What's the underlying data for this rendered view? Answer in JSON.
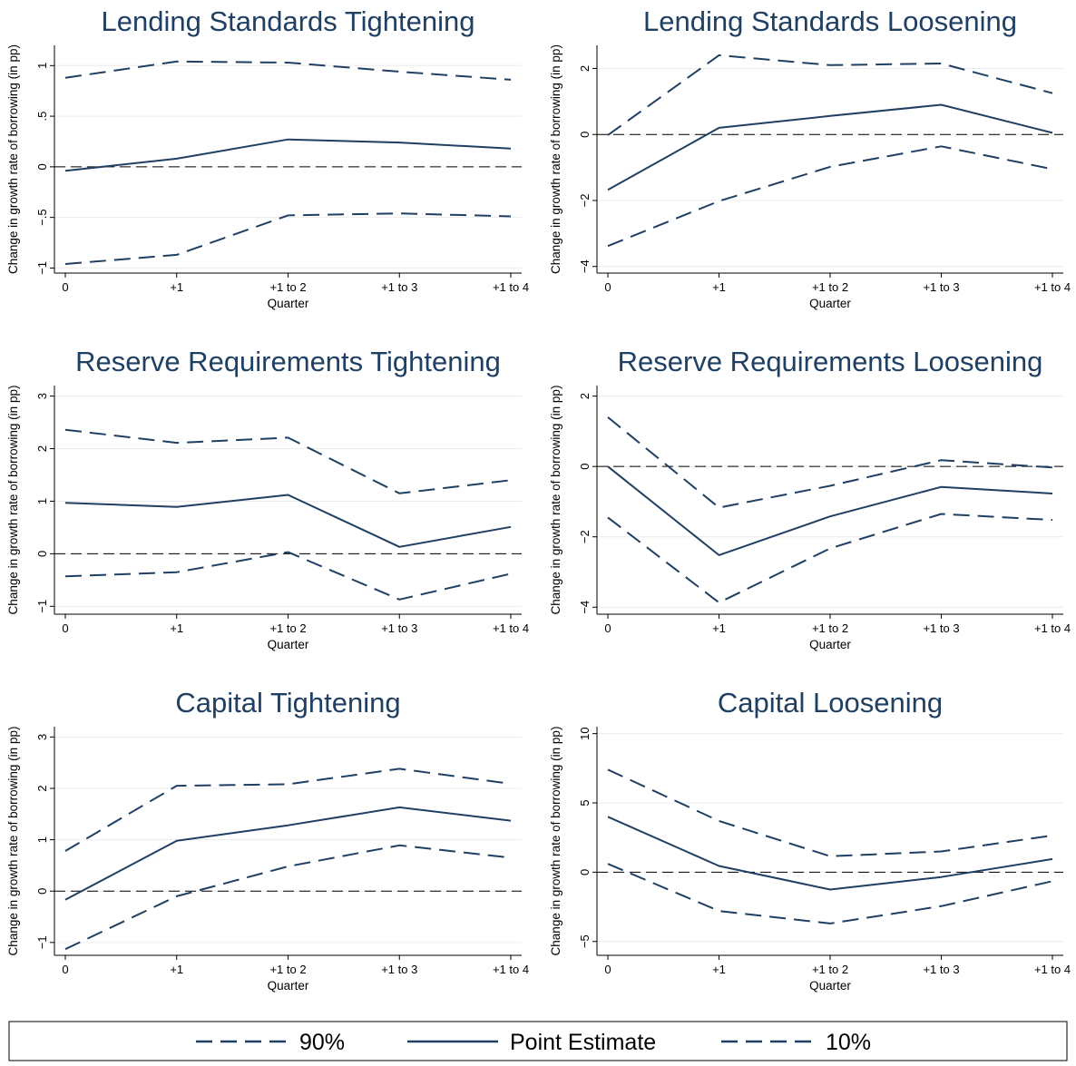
{
  "colors": {
    "series": "#1f3f63",
    "title": "#1f3f63",
    "axis": "#000000",
    "grid": "#ececec"
  },
  "legend": {
    "placement": "bottom",
    "items": [
      {
        "label": "90%",
        "style": "dashed"
      },
      {
        "label": "Point Estimate",
        "style": "solid"
      },
      {
        "label": "10%",
        "style": "dashed"
      }
    ]
  },
  "chart_data": [
    {
      "type": "line",
      "title": "Lending Standards Tightening",
      "xlabel": "Quarter",
      "ylabel": "Change in growth rate of borrowing (in pp)",
      "categories": [
        "0",
        "+1",
        "+1 to 2",
        "+1 to 3",
        "+1 to 4"
      ],
      "ylim": [
        -1.05,
        1.2
      ],
      "yticks": [
        -1,
        -0.5,
        0,
        0.5,
        1
      ],
      "yticklabels": [
        "−1",
        "−.5",
        "0",
        ".5",
        "1"
      ],
      "grid": true,
      "reference_line": 0,
      "series": [
        {
          "name": "90%",
          "style": "dashed",
          "values": [
            0.88,
            1.04,
            1.03,
            0.94,
            0.86
          ]
        },
        {
          "name": "Point Estimate",
          "style": "solid",
          "values": [
            -0.04,
            0.08,
            0.27,
            0.24,
            0.18
          ]
        },
        {
          "name": "10%",
          "style": "dashed",
          "values": [
            -0.96,
            -0.87,
            -0.48,
            -0.46,
            -0.49
          ]
        }
      ]
    },
    {
      "type": "line",
      "title": "Lending Standards Loosening",
      "xlabel": "Quarter",
      "ylabel": "Change in growth rate of borrowing (in pp)",
      "categories": [
        "0",
        "+1",
        "+1 to 2",
        "+1 to 3",
        "+1 to 4"
      ],
      "ylim": [
        -4.2,
        2.7
      ],
      "yticks": [
        -4,
        -2,
        0,
        2
      ],
      "yticklabels": [
        "−4",
        "−2",
        "0",
        "2"
      ],
      "grid": true,
      "reference_line": 0,
      "series": [
        {
          "name": "90%",
          "style": "dashed",
          "values": [
            -0.02,
            2.4,
            2.1,
            2.15,
            1.25
          ]
        },
        {
          "name": "Point Estimate",
          "style": "solid",
          "values": [
            -1.68,
            0.2,
            0.56,
            0.9,
            0.05
          ]
        },
        {
          "name": "10%",
          "style": "dashed",
          "values": [
            -3.38,
            -2.02,
            -0.98,
            -0.36,
            -1.05
          ]
        }
      ]
    },
    {
      "type": "line",
      "title": "Reserve Requirements Tightening",
      "xlabel": "Quarter",
      "ylabel": "Change in growth rate of borrowing (in pp)",
      "categories": [
        "0",
        "+1",
        "+1 to 2",
        "+1 to 3",
        "+1 to 4"
      ],
      "ylim": [
        -1.15,
        3.2
      ],
      "yticks": [
        -1,
        0,
        1,
        2,
        3
      ],
      "yticklabels": [
        "−1",
        "0",
        "1",
        "2",
        "3"
      ],
      "grid": true,
      "reference_line": 0,
      "series": [
        {
          "name": "90%",
          "style": "dashed",
          "values": [
            2.36,
            2.11,
            2.21,
            1.15,
            1.4
          ]
        },
        {
          "name": "Point Estimate",
          "style": "solid",
          "values": [
            0.97,
            0.89,
            1.12,
            0.13,
            0.51
          ]
        },
        {
          "name": "10%",
          "style": "dashed",
          "values": [
            -0.43,
            -0.35,
            0.03,
            -0.87,
            -0.38
          ]
        }
      ]
    },
    {
      "type": "line",
      "title": "Reserve Requirements Loosening",
      "xlabel": "Quarter",
      "ylabel": "Change in growth rate of borrowing (in pp)",
      "categories": [
        "0",
        "+1",
        "+1 to 2",
        "+1 to 3",
        "+1 to 4"
      ],
      "ylim": [
        -4.2,
        2.3
      ],
      "yticks": [
        -4,
        -2,
        0,
        2
      ],
      "yticklabels": [
        "−4",
        "−2",
        "0",
        "2"
      ],
      "grid": true,
      "reference_line": 0,
      "series": [
        {
          "name": "90%",
          "style": "dashed",
          "values": [
            1.4,
            -1.17,
            -0.55,
            0.18,
            -0.03
          ]
        },
        {
          "name": "Point Estimate",
          "style": "solid",
          "values": [
            0.0,
            -2.52,
            -1.42,
            -0.58,
            -0.77
          ]
        },
        {
          "name": "10%",
          "style": "dashed",
          "values": [
            -1.45,
            -3.87,
            -2.33,
            -1.35,
            -1.52
          ]
        }
      ]
    },
    {
      "type": "line",
      "title": "Capital Tightening",
      "xlabel": "Quarter",
      "ylabel": "Change in growth rate of borrowing (in pp)",
      "categories": [
        "0",
        "+1",
        "+1 to 2",
        "+1 to 3",
        "+1 to 4"
      ],
      "ylim": [
        -1.25,
        3.2
      ],
      "yticks": [
        -1,
        0,
        1,
        2,
        3
      ],
      "yticklabels": [
        "−1",
        "0",
        "1",
        "2",
        "3"
      ],
      "grid": true,
      "reference_line": 0,
      "series": [
        {
          "name": "90%",
          "style": "dashed",
          "values": [
            0.78,
            2.05,
            2.08,
            2.38,
            2.09
          ]
        },
        {
          "name": "Point Estimate",
          "style": "solid",
          "values": [
            -0.17,
            0.98,
            1.28,
            1.63,
            1.37
          ]
        },
        {
          "name": "10%",
          "style": "dashed",
          "values": [
            -1.13,
            -0.1,
            0.48,
            0.89,
            0.65
          ]
        }
      ]
    },
    {
      "type": "line",
      "title": "Capital Loosening",
      "xlabel": "Quarter",
      "ylabel": "Change in growth rate of borrowing (in pp)",
      "categories": [
        "0",
        "+1",
        "+1 to 2",
        "+1 to 3",
        "+1 to 4"
      ],
      "ylim": [
        -6.0,
        10.5
      ],
      "yticks": [
        -5,
        0,
        5,
        10
      ],
      "yticklabels": [
        "−5",
        "0",
        "5",
        "10"
      ],
      "grid": true,
      "reference_line": 0,
      "series": [
        {
          "name": "90%",
          "style": "dashed",
          "values": [
            7.4,
            3.7,
            1.15,
            1.5,
            2.65
          ]
        },
        {
          "name": "Point Estimate",
          "style": "solid",
          "values": [
            4.0,
            0.45,
            -1.25,
            -0.35,
            0.95
          ]
        },
        {
          "name": "10%",
          "style": "dashed",
          "values": [
            0.6,
            -2.8,
            -3.7,
            -2.45,
            -0.65
          ]
        }
      ]
    }
  ]
}
